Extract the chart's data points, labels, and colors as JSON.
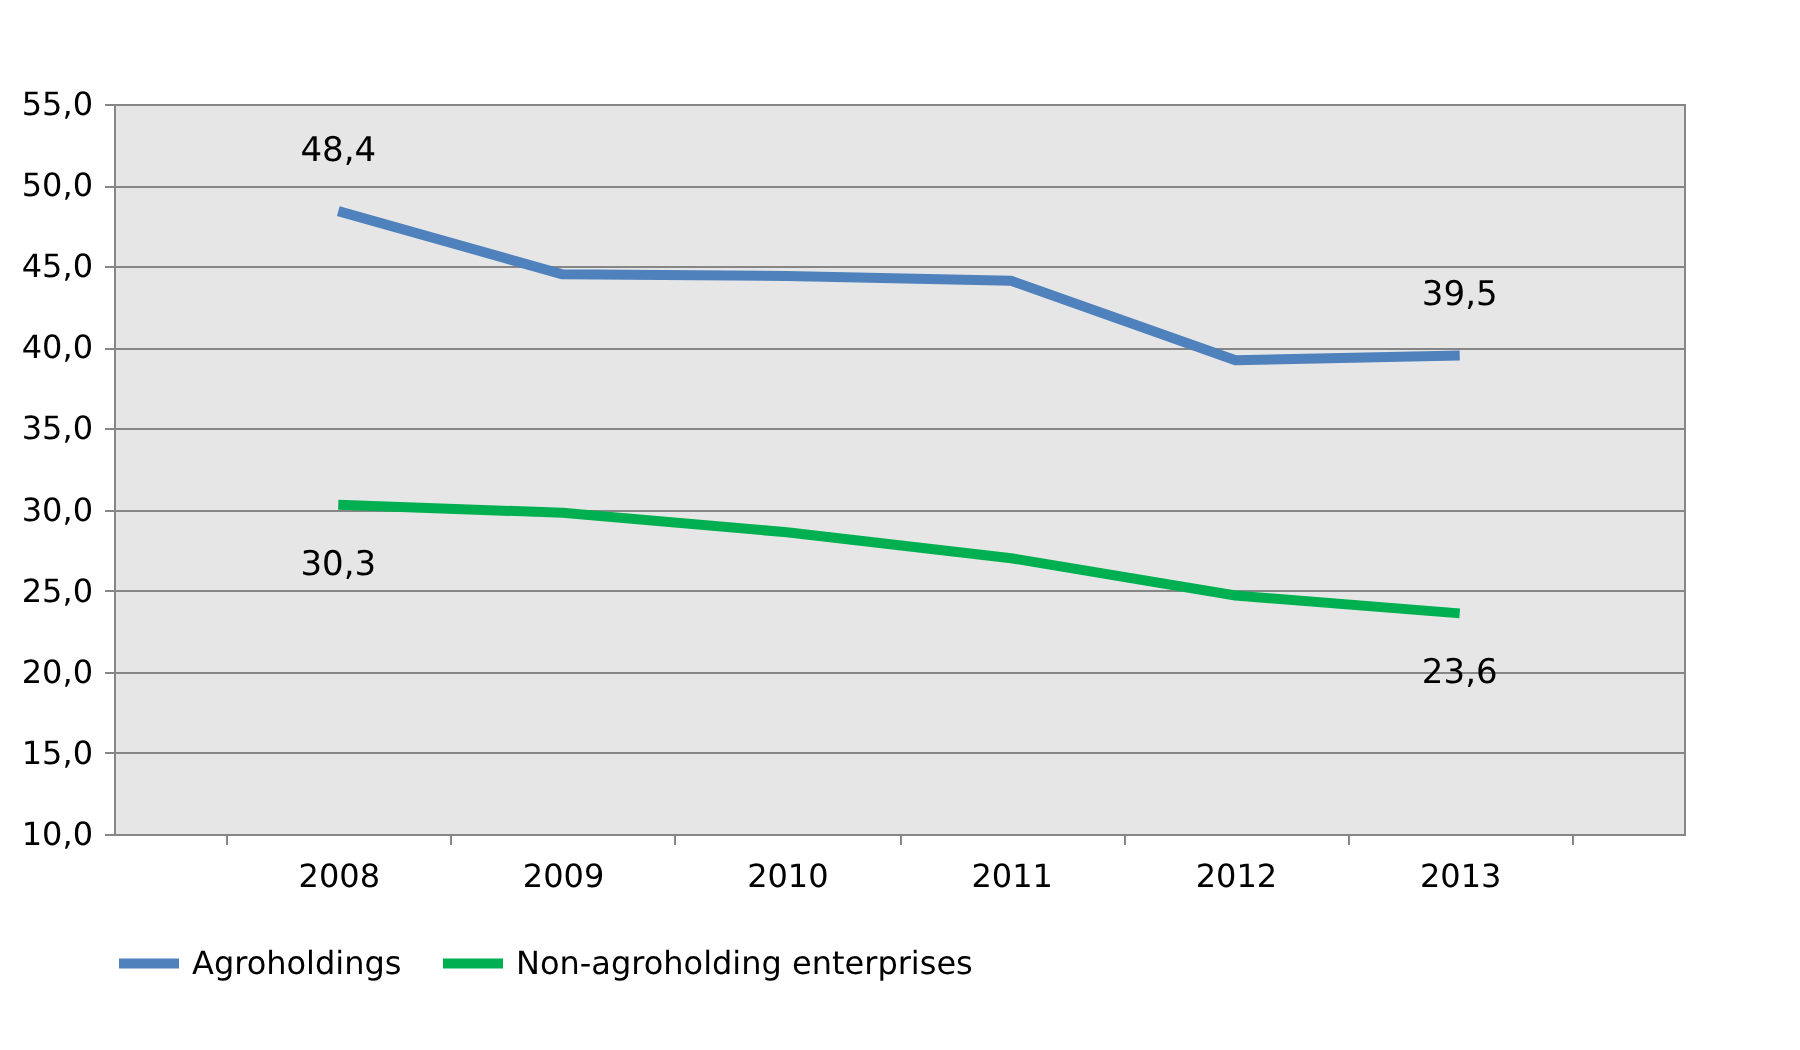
{
  "chart_data": {
    "type": "line",
    "categories": [
      "2008",
      "2009",
      "2010",
      "2011",
      "2012",
      "2013"
    ],
    "series": [
      {
        "name": "Agroholdings",
        "color": "#4f81bd",
        "values": [
          48.4,
          44.5,
          44.4,
          44.1,
          39.2,
          39.5
        ],
        "value_labels": [
          "48,4",
          null,
          null,
          null,
          null,
          "39,5"
        ]
      },
      {
        "name": "Non-agroholding enterprises",
        "color": "#00b050",
        "values": [
          30.3,
          29.8,
          28.6,
          27.0,
          24.7,
          23.6
        ],
        "value_labels": [
          "30,3",
          null,
          null,
          null,
          null,
          "23,6"
        ]
      }
    ],
    "ylim": [
      10,
      55
    ],
    "yticks": [
      {
        "value": 10,
        "label": "10,0"
      },
      {
        "value": 15,
        "label": "15,0"
      },
      {
        "value": 20,
        "label": "20,0"
      },
      {
        "value": 25,
        "label": "25,0"
      },
      {
        "value": 30,
        "label": "30,0"
      },
      {
        "value": 35,
        "label": "35,0"
      },
      {
        "value": 40,
        "label": "40,0"
      },
      {
        "value": 45,
        "label": "45,0"
      },
      {
        "value": 50,
        "label": "50,0"
      },
      {
        "value": 55,
        "label": "55,0"
      }
    ],
    "grid": "y",
    "legend": "bottom",
    "marker": "none",
    "line_style": "solid"
  }
}
